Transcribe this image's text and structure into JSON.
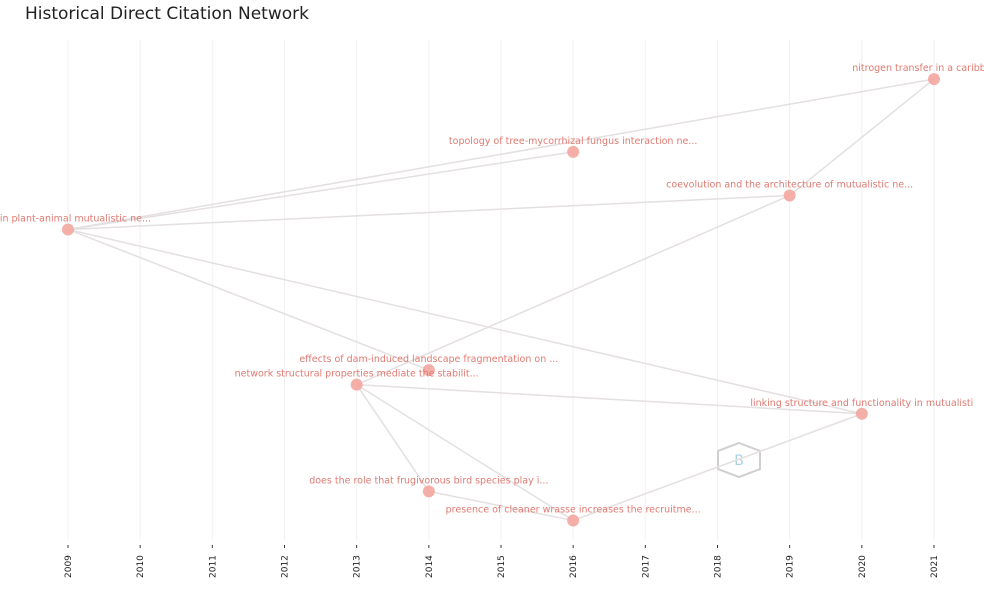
{
  "chart_data": {
    "type": "scatter",
    "title": "Historical Direct Citation Network",
    "xlabel": "",
    "ylabel": "",
    "xlim": [
      2009,
      2021
    ],
    "ylim": [
      0,
      1
    ],
    "x_ticks": [
      "2009",
      "2010",
      "2011",
      "2012",
      "2013",
      "2014",
      "2015",
      "2016",
      "2017",
      "2018",
      "2019",
      "2020",
      "2021"
    ],
    "grid": true,
    "node_color": "#f4a6a0",
    "label_color": "#e07a72",
    "edge_color": "#e4dfe0",
    "nodes": [
      {
        "id": "n2009",
        "year": 2009,
        "y": 0.63,
        "label": "on in plant-animal mutualistic ne..."
      },
      {
        "id": "n2016a",
        "year": 2016,
        "y": 0.79,
        "label": "topology of tree-mycorrhizal fungus interaction ne..."
      },
      {
        "id": "n2021",
        "year": 2021,
        "y": 0.94,
        "label": "nitrogen transfer in a caribbean m"
      },
      {
        "id": "n2019",
        "year": 2019,
        "y": 0.7,
        "label": "coevolution and the architecture of mutualistic ne..."
      },
      {
        "id": "n2014a",
        "year": 2014,
        "y": 0.34,
        "label": "effects of dam-induced landscape fragmentation on ..."
      },
      {
        "id": "n2013",
        "year": 2013,
        "y": 0.31,
        "label": "network structural properties mediate the stabilit..."
      },
      {
        "id": "n2020",
        "year": 2020,
        "y": 0.25,
        "label": "linking structure and functionality in mutualisti"
      },
      {
        "id": "n2014b",
        "year": 2014,
        "y": 0.09,
        "label": "does the role that frugivorous bird species play i..."
      },
      {
        "id": "n2016b",
        "year": 2016,
        "y": 0.03,
        "label": "presence of cleaner wrasse increases the recruitme..."
      }
    ],
    "edges": [
      [
        "n2009",
        "n2021"
      ],
      [
        "n2009",
        "n2016a"
      ],
      [
        "n2009",
        "n2019"
      ],
      [
        "n2009",
        "n2014a"
      ],
      [
        "n2009",
        "n2020"
      ],
      [
        "n2019",
        "n2021"
      ],
      [
        "n2013",
        "n2019"
      ],
      [
        "n2013",
        "n2020"
      ],
      [
        "n2013",
        "n2014b"
      ],
      [
        "n2013",
        "n2016b"
      ],
      [
        "n2014b",
        "n2016b"
      ],
      [
        "n2016b",
        "n2020"
      ]
    ],
    "watermark_icon": "hexagon-logo-icon"
  }
}
